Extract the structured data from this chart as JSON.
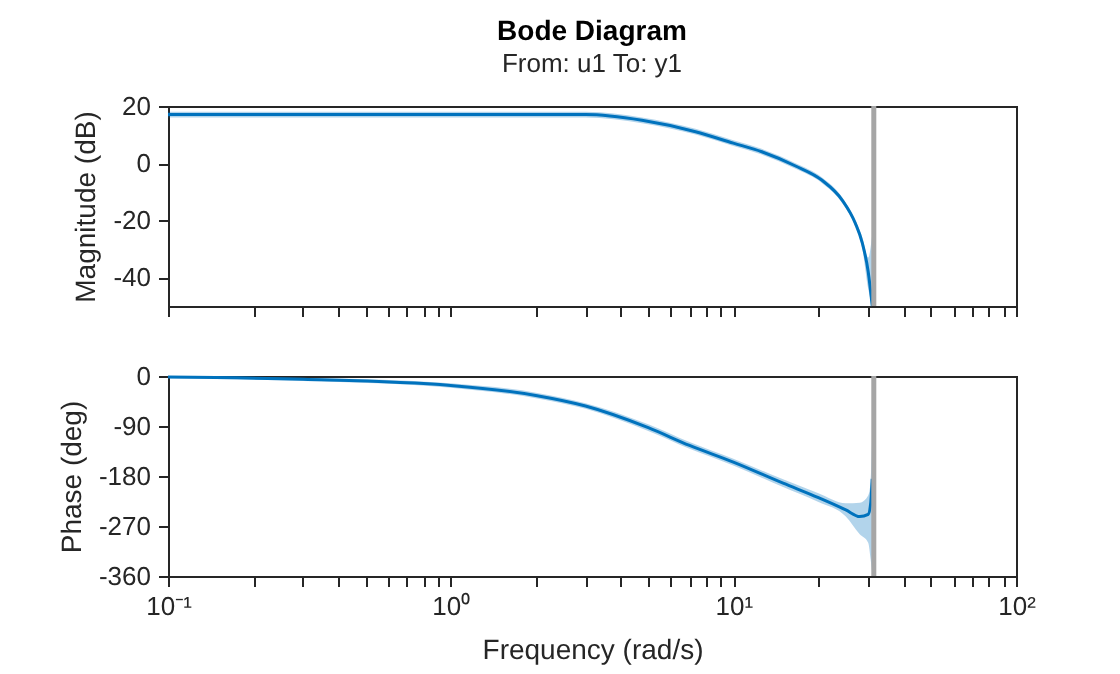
{
  "chart_data": [
    {
      "type": "line",
      "title": "Bode Diagram",
      "subtitle": "From: u1  To: y1",
      "ylabel": "Magnitude (dB)",
      "log": "x",
      "tick_labels": "y",
      "xlim": [
        0.1,
        100
      ],
      "xticks": [
        0.1,
        0.2,
        0.3,
        0.4,
        0.5,
        0.6,
        0.7,
        0.8,
        0.9,
        1,
        2,
        3,
        4,
        5,
        6,
        7,
        8,
        9,
        10,
        20,
        30,
        40,
        50,
        60,
        70,
        80,
        90,
        100
      ],
      "ylim": [
        -50,
        20
      ],
      "yticks": [
        -40,
        -20,
        0,
        20
      ],
      "series": [
        {
          "color": "#0072bd",
          "x": [
            0.1,
            0.3,
            1,
            2,
            3,
            4.75,
            7.35,
            10,
            12.6,
            16.6,
            20.6,
            24.3,
            27,
            28.6,
            30,
            31
          ],
          "values": [
            17,
            17,
            17,
            17,
            17,
            15,
            11,
            7,
            4,
            -1,
            -6,
            -13,
            -21,
            -28,
            -38,
            -50
          ],
          "lower": [
            16,
            16,
            16,
            16,
            16,
            14,
            10,
            6,
            3,
            -2,
            -7,
            -14,
            -22,
            -30,
            -44,
            -50
          ],
          "upper": [
            18,
            18,
            18,
            18,
            18,
            16,
            12,
            8,
            5,
            0,
            -5,
            -12,
            -20,
            -26,
            -33,
            -25
          ]
        }
      ],
      "ref_lines": [
        {
          "axis": "x",
          "value": 31.4,
          "color": "#a6a6a6"
        }
      ]
    },
    {
      "type": "line",
      "xlabel": "Frequency (rad/s)",
      "ylabel": "Phase (deg)",
      "log": "x",
      "xlim": [
        0.1,
        100
      ],
      "xticks": [
        {
          "value": 0.1,
          "label": "10⁻¹"
        },
        {
          "value": 0.2,
          "label": null
        },
        {
          "value": 0.3,
          "label": null
        },
        {
          "value": 0.4,
          "label": null
        },
        {
          "value": 0.5,
          "label": null
        },
        {
          "value": 0.6,
          "label": null
        },
        {
          "value": 0.7,
          "label": null
        },
        {
          "value": 0.8,
          "label": null
        },
        {
          "value": 0.9,
          "label": null
        },
        {
          "value": 1,
          "label": "10⁰"
        },
        {
          "value": 2,
          "label": null
        },
        {
          "value": 3,
          "label": null
        },
        {
          "value": 4,
          "label": null
        },
        {
          "value": 5,
          "label": null
        },
        {
          "value": 6,
          "label": null
        },
        {
          "value": 7,
          "label": null
        },
        {
          "value": 8,
          "label": null
        },
        {
          "value": 9,
          "label": null
        },
        {
          "value": 10,
          "label": "10¹"
        },
        {
          "value": 20,
          "label": null
        },
        {
          "value": 30,
          "label": null
        },
        {
          "value": 40,
          "label": null
        },
        {
          "value": 50,
          "label": null
        },
        {
          "value": 60,
          "label": null
        },
        {
          "value": 70,
          "label": null
        },
        {
          "value": 80,
          "label": null
        },
        {
          "value": 90,
          "label": null
        },
        {
          "value": 100,
          "label": "10²"
        }
      ],
      "ylim": [
        -360,
        0
      ],
      "yticks": [
        -360,
        -270,
        -180,
        -90,
        0
      ],
      "series": [
        {
          "color": "#0072bd",
          "x": [
            0.1,
            0.3,
            1,
            2,
            3,
            5,
            7,
            10,
            15,
            20,
            25,
            28,
            30,
            30.6,
            31
          ],
          "values": [
            -2,
            -6,
            -17,
            -35,
            -54,
            -93,
            -125,
            -155,
            -193,
            -219,
            -241,
            -253,
            -249,
            -230,
            -185
          ],
          "lower": [
            -4,
            -9,
            -21,
            -40,
            -59,
            -99,
            -131,
            -161,
            -200,
            -227,
            -253,
            -285,
            -300,
            -330,
            -355
          ],
          "upper": [
            0,
            -3,
            -13,
            -30,
            -49,
            -87,
            -119,
            -149,
            -186,
            -211,
            -229,
            -228,
            -215,
            -190,
            -105
          ]
        }
      ],
      "ref_lines": [
        {
          "axis": "x",
          "value": 31.4,
          "color": "#a6a6a6"
        }
      ]
    }
  ]
}
